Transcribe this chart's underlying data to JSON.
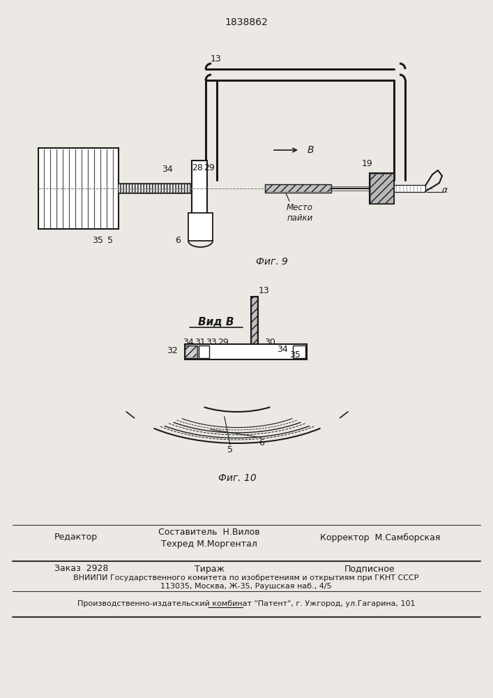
{
  "patent_number": "1838862",
  "background_color": "#ece9e4",
  "fig9_label": "Фиг. 9",
  "fig10_label": "Фиг. 10",
  "view_b_label": "Вид В",
  "arrow_label": "В",
  "mesto_paiki": "Место\nпайки",
  "footer": {
    "editor_label": "Редактор",
    "sostavitel": "Составитель  Н.Вилов",
    "tehred": "Техред М.Моргентал",
    "korrektor_label": "Корректор  М.Самборская",
    "zakaz": "Заказ  2928",
    "tirazh": "Тираж",
    "podpisnoe": "Подписное",
    "vniiipi": "ВНИИПИ Государственного комитета по изобретениям и открытиям при ГКНТ СССР",
    "address": "113035, Москва, Ж-35, Раушская наб., 4/5",
    "kombinat": "Производственно-издательский комбинат \"Патент\", г. Ужгород, ул.Гагарина, 101"
  }
}
